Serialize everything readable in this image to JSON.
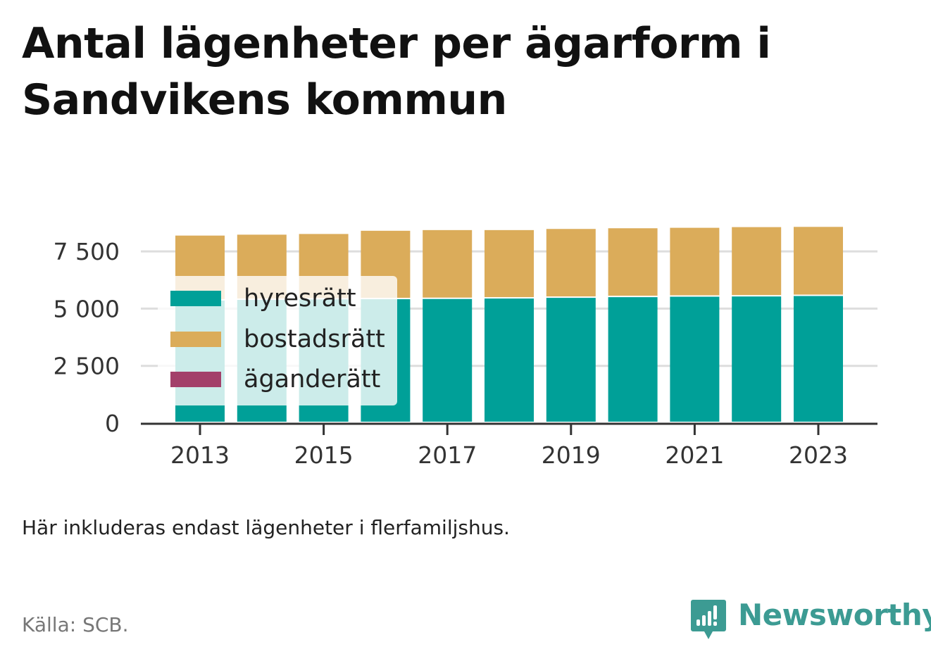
{
  "title": "Antal lägenheter per ägarform i Sandvikens kommun",
  "note": "Här inkluderas endast lägenheter i flerfamiljshus.",
  "source": "Källa: SCB.",
  "brand": {
    "name": "Newsworthy",
    "icon": "newsworthy-logo-icon",
    "color": "#3c9b93"
  },
  "colors": {
    "hyresratt": "#00a098",
    "bostadsratt": "#dbac5a",
    "aganderatt": "#a3406a",
    "grid": "#dddddd",
    "axis": "#333333"
  },
  "legend": [
    {
      "label": "hyresrätt",
      "color": "#00a098"
    },
    {
      "label": "bostadsrätt",
      "color": "#dbac5a"
    },
    {
      "label": "äganderätt",
      "color": "#a3406a"
    }
  ],
  "chart_data": {
    "type": "bar",
    "stacked": true,
    "categories": [
      "2013",
      "2014",
      "2015",
      "2016",
      "2017",
      "2018",
      "2019",
      "2020",
      "2021",
      "2022",
      "2023"
    ],
    "x_tick_labels": [
      "2013",
      "2015",
      "2017",
      "2019",
      "2021",
      "2023"
    ],
    "y_ticks": [
      0,
      2500,
      5000,
      7500
    ],
    "y_tick_labels": [
      "0",
      "2 500",
      "5 000",
      "7 500"
    ],
    "ylim": [
      0,
      9000
    ],
    "grid": true,
    "legend_position": "top-left",
    "title": "Antal lägenheter per ägarform i Sandvikens kommun",
    "xlabel": "",
    "ylabel": "",
    "series": [
      {
        "name": "hyresrätt",
        "color": "#00a098",
        "values": [
          5350,
          5380,
          5400,
          5410,
          5420,
          5440,
          5470,
          5500,
          5520,
          5530,
          5550
        ]
      },
      {
        "name": "bostadsrätt",
        "color": "#dbac5a",
        "values": [
          2840,
          2850,
          2860,
          2990,
          3010,
          2990,
          3010,
          3010,
          3010,
          3030,
          3020
        ]
      },
      {
        "name": "äganderätt",
        "color": "#a3406a",
        "values": [
          0,
          0,
          0,
          0,
          0,
          0,
          0,
          0,
          0,
          0,
          0
        ]
      }
    ]
  }
}
